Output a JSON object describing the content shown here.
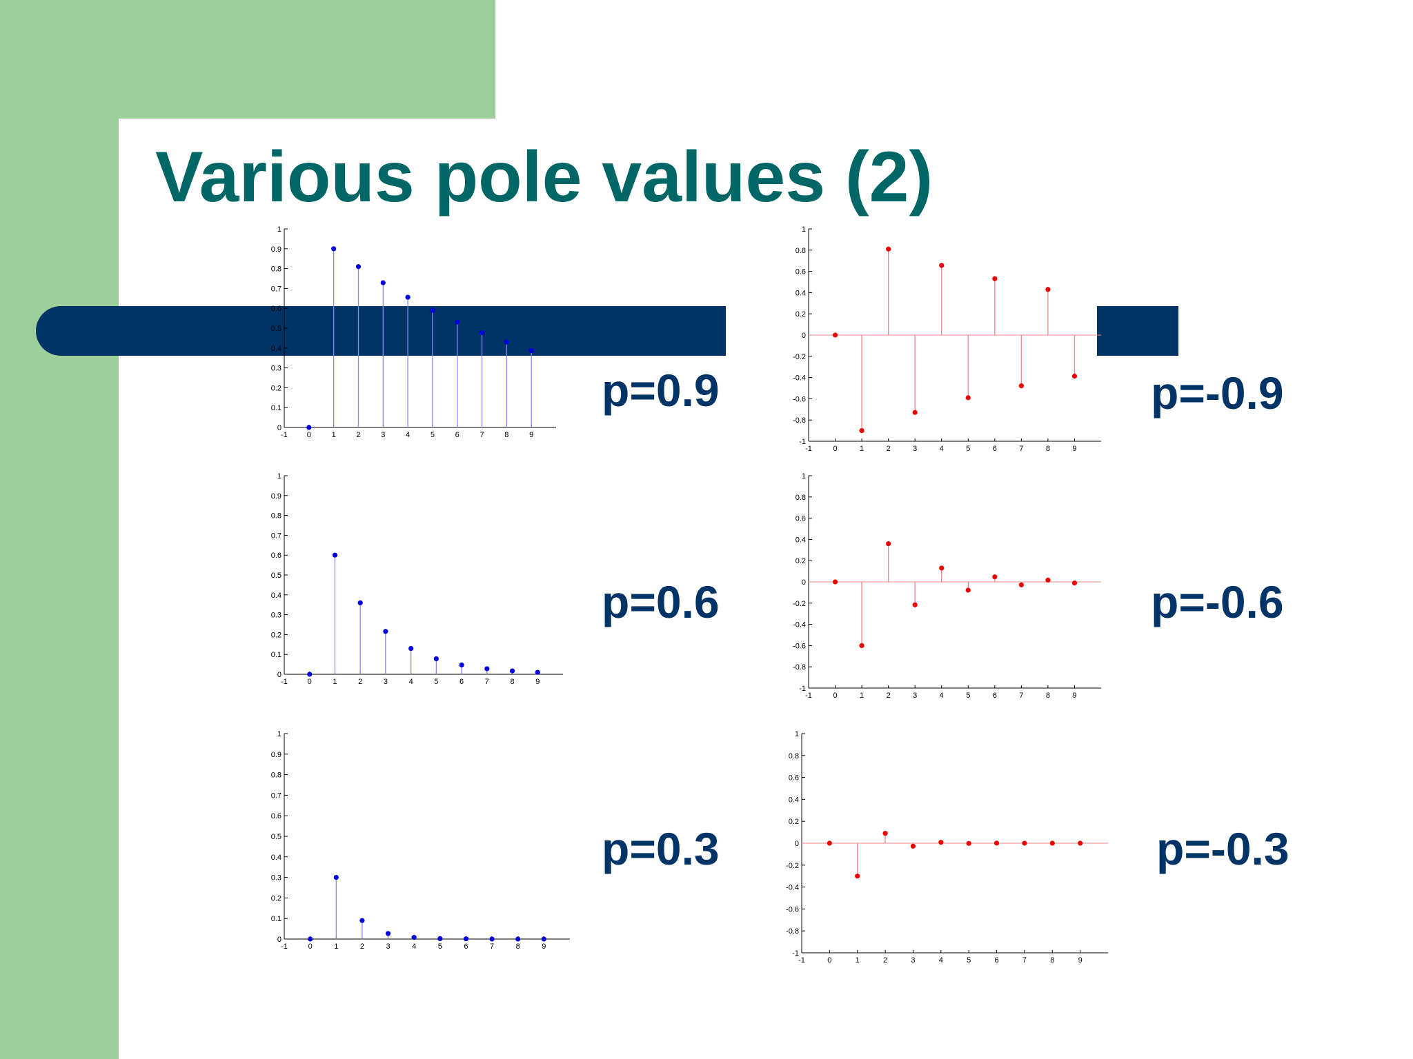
{
  "title": "Various pole values (2)",
  "colors": {
    "green": "#9dce9b",
    "navy": "#003366",
    "title": "#006666",
    "blue_series": "#0000dd",
    "blue_stem": "#8888ee",
    "red_series": "#ee0000",
    "red_stem": "#ee8888"
  },
  "labels": {
    "p09": "p=0.9",
    "pm09": "p=-0.9",
    "p06": "p=0.6",
    "pm06": "p=-0.6",
    "p03": "p=0.3",
    "pm03": "p=-0.3"
  },
  "chart_data": [
    {
      "type": "stem",
      "x": [
        0,
        1,
        2,
        3,
        4,
        5,
        6,
        7,
        8,
        9
      ],
      "values": [
        0,
        0.9,
        0.81,
        0.729,
        0.656,
        0.59,
        0.531,
        0.478,
        0.43,
        0.387
      ],
      "xlim": [
        -1,
        10
      ],
      "ylim": [
        0,
        1
      ],
      "xticks": [
        -1,
        0,
        1,
        2,
        3,
        4,
        5,
        6,
        7,
        8,
        9
      ],
      "xtick_labels": [
        "-1",
        "0",
        "1",
        "2",
        "3",
        "4",
        "5",
        "6",
        "7",
        "8",
        "9"
      ],
      "yticks": [
        0,
        0.1,
        0.2,
        0.3,
        0.4,
        0.5,
        0.6,
        0.7,
        0.8,
        0.9,
        1
      ],
      "ytick_labels": [
        "0",
        "0.1",
        "0.2",
        "0.3",
        "0.4",
        "0.5",
        "0.6",
        "0.7",
        "0.8",
        "0.9",
        "1"
      ],
      "color": "blue",
      "label_key": "p09"
    },
    {
      "type": "stem",
      "x": [
        0,
        1,
        2,
        3,
        4,
        5,
        6,
        7,
        8,
        9
      ],
      "values": [
        0,
        -0.9,
        0.81,
        -0.729,
        0.656,
        -0.59,
        0.531,
        -0.478,
        0.43,
        -0.387
      ],
      "xlim": [
        -1,
        10
      ],
      "ylim": [
        -1,
        1
      ],
      "xticks": [
        -1,
        0,
        1,
        2,
        3,
        4,
        5,
        6,
        7,
        8,
        9
      ],
      "xtick_labels": [
        "-1",
        "0",
        "1",
        "2",
        "3",
        "4",
        "5",
        "6",
        "7",
        "8",
        "9"
      ],
      "yticks": [
        -1,
        -0.8,
        -0.6,
        -0.4,
        -0.2,
        0,
        0.2,
        0.4,
        0.6,
        0.8,
        1
      ],
      "ytick_labels": [
        "-1",
        "-0.8",
        "-0.6",
        "-0.4",
        "-0.2",
        "0",
        "0.2",
        "0.4",
        "0.6",
        "0.8",
        "1"
      ],
      "color": "red",
      "label_key": "pm09"
    },
    {
      "type": "stem",
      "x": [
        0,
        1,
        2,
        3,
        4,
        5,
        6,
        7,
        8,
        9
      ],
      "values": [
        0,
        0.6,
        0.36,
        0.216,
        0.13,
        0.078,
        0.047,
        0.028,
        0.017,
        0.01
      ],
      "xlim": [
        -1,
        10
      ],
      "ylim": [
        0,
        1
      ],
      "xticks": [
        -1,
        0,
        1,
        2,
        3,
        4,
        5,
        6,
        7,
        8,
        9
      ],
      "xtick_labels": [
        "-1",
        "0",
        "1",
        "2",
        "3",
        "4",
        "5",
        "6",
        "7",
        "8",
        "9"
      ],
      "yticks": [
        0,
        0.1,
        0.2,
        0.3,
        0.4,
        0.5,
        0.6,
        0.7,
        0.8,
        0.9,
        1
      ],
      "ytick_labels": [
        "0",
        "0.1",
        "0.2",
        "0.3",
        "0.4",
        "0.5",
        "0.6",
        "0.7",
        "0.8",
        "0.9",
        "1"
      ],
      "color": "blue",
      "label_key": "p06"
    },
    {
      "type": "stem",
      "x": [
        0,
        1,
        2,
        3,
        4,
        5,
        6,
        7,
        8,
        9
      ],
      "values": [
        0,
        -0.6,
        0.36,
        -0.216,
        0.13,
        -0.078,
        0.047,
        -0.028,
        0.017,
        -0.01
      ],
      "xlim": [
        -1,
        10
      ],
      "ylim": [
        -1,
        1
      ],
      "xticks": [
        -1,
        0,
        1,
        2,
        3,
        4,
        5,
        6,
        7,
        8,
        9
      ],
      "xtick_labels": [
        "-1",
        "0",
        "1",
        "2",
        "3",
        "4",
        "5",
        "6",
        "7",
        "8",
        "9"
      ],
      "yticks": [
        -1,
        -0.8,
        -0.6,
        -0.4,
        -0.2,
        0,
        0.2,
        0.4,
        0.6,
        0.8,
        1
      ],
      "ytick_labels": [
        "-1",
        "-0.8",
        "-0.6",
        "-0.4",
        "-0.2",
        "0",
        "0.2",
        "0.4",
        "0.6",
        "0.8",
        "1"
      ],
      "color": "red",
      "label_key": "pm06"
    },
    {
      "type": "stem",
      "x": [
        0,
        1,
        2,
        3,
        4,
        5,
        6,
        7,
        8,
        9
      ],
      "values": [
        0,
        0.3,
        0.09,
        0.027,
        0.008,
        0.002,
        0.001,
        0,
        0,
        0
      ],
      "xlim": [
        -1,
        10
      ],
      "ylim": [
        0,
        1
      ],
      "xticks": [
        -1,
        0,
        1,
        2,
        3,
        4,
        5,
        6,
        7,
        8,
        9
      ],
      "xtick_labels": [
        "-1",
        "0",
        "1",
        "2",
        "3",
        "4",
        "5",
        "6",
        "7",
        "8",
        "9"
      ],
      "yticks": [
        0,
        0.1,
        0.2,
        0.3,
        0.4,
        0.5,
        0.6,
        0.7,
        0.8,
        0.9,
        1
      ],
      "ytick_labels": [
        "0",
        "0.1",
        "0.2",
        "0.3",
        "0.4",
        "0.5",
        "0.6",
        "0.7",
        "0.8",
        "0.9",
        "1"
      ],
      "color": "blue",
      "label_key": "p03"
    },
    {
      "type": "stem",
      "x": [
        0,
        1,
        2,
        3,
        4,
        5,
        6,
        7,
        8,
        9
      ],
      "values": [
        0,
        -0.3,
        0.09,
        -0.027,
        0.008,
        -0.002,
        0.001,
        0,
        0,
        0
      ],
      "xlim": [
        -1,
        10
      ],
      "ylim": [
        -1,
        1
      ],
      "xticks": [
        -1,
        0,
        1,
        2,
        3,
        4,
        5,
        6,
        7,
        8,
        9
      ],
      "xtick_labels": [
        "-1",
        "0",
        "1",
        "2",
        "3",
        "4",
        "5",
        "6",
        "7",
        "8",
        "9"
      ],
      "yticks": [
        -1,
        -0.8,
        -0.6,
        -0.4,
        -0.2,
        0,
        0.2,
        0.4,
        0.6,
        0.8,
        1
      ],
      "ytick_labels": [
        "-1",
        "-0.8",
        "-0.6",
        "-0.4",
        "-0.2",
        "0",
        "0.2",
        "0.4",
        "0.6",
        "0.8",
        "1"
      ],
      "color": "red",
      "label_key": "pm03"
    }
  ]
}
